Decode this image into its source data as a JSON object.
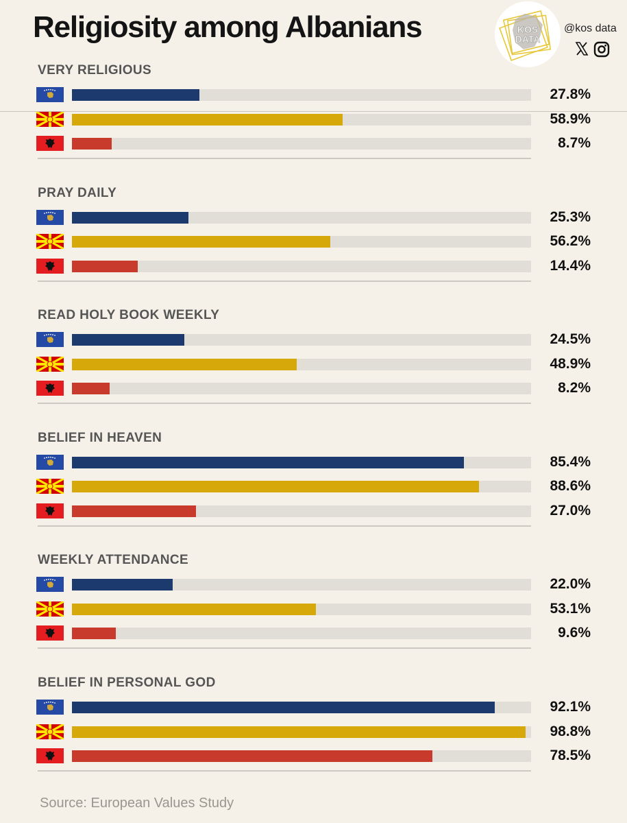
{
  "title": "Religiosity among Albanians",
  "brand": {
    "logo_text_1": "KOS",
    "logo_text_2": "DATA",
    "handle": "@kos data"
  },
  "social_icons": [
    "x-icon",
    "instagram-icon"
  ],
  "source": "Source: European Values Study",
  "colors": {
    "kosovo": "#1d3a6e",
    "north_macedonia": "#d6a80a",
    "albania": "#c73a2c",
    "track": "#e1ddd7",
    "background": "#f5f1e9"
  },
  "chart_data": {
    "type": "bar",
    "orientation": "horizontal",
    "title": "Religiosity among Albanians",
    "xlim": [
      0,
      100
    ],
    "unit": "%",
    "series": [
      {
        "key": "kosovo",
        "flag": "kosovo-flag-icon",
        "color": "#1d3a6e"
      },
      {
        "key": "north_macedonia",
        "flag": "north-macedonia-flag-icon",
        "color": "#d6a80a"
      },
      {
        "key": "albania",
        "flag": "albania-flag-icon",
        "color": "#c73a2c"
      }
    ],
    "groups": [
      {
        "label": "VERY RELIGIOUS",
        "values": [
          27.8,
          58.9,
          8.7
        ],
        "labels": [
          "27.8%",
          "58.9%",
          "8.7%"
        ]
      },
      {
        "label": "PRAY DAILY",
        "values": [
          25.3,
          56.2,
          14.4
        ],
        "labels": [
          "25.3%",
          "56.2%",
          "14.4%"
        ]
      },
      {
        "label": "READ HOLY BOOK WEEKLY",
        "values": [
          24.5,
          48.9,
          8.2
        ],
        "labels": [
          "24.5%",
          "48.9%",
          "8.2%"
        ]
      },
      {
        "label": "BELIEF IN HEAVEN",
        "values": [
          85.4,
          88.6,
          27.0
        ],
        "labels": [
          "85.4%",
          "88.6%",
          "27.0%"
        ]
      },
      {
        "label": "WEEKLY ATTENDANCE",
        "values": [
          22.0,
          53.1,
          9.6
        ],
        "labels": [
          "22.0%",
          "53.1%",
          "9.6%"
        ]
      },
      {
        "label": "BELIEF IN PERSONAL GOD",
        "values": [
          92.1,
          98.8,
          78.5
        ],
        "labels": [
          "92.1%",
          "98.8%",
          "78.5%"
        ]
      }
    ]
  }
}
